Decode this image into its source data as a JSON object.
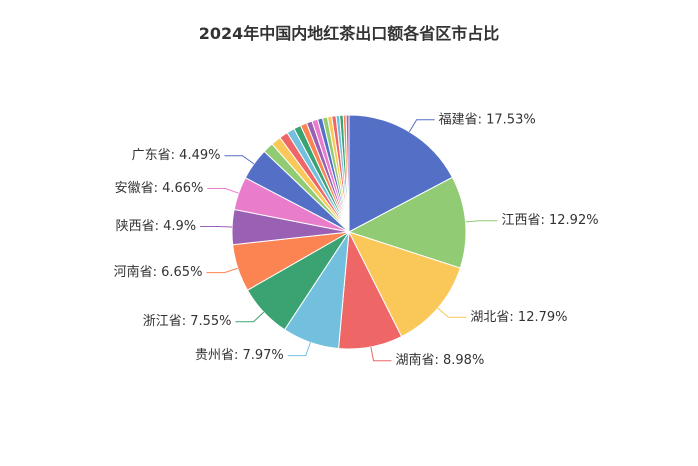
{
  "chart_data": {
    "type": "pie",
    "title": "2024年中国内地红茶出口额各省区市占比",
    "slices": [
      {
        "name": "福建省",
        "value": 17.53,
        "label": "福建省: 17.53%",
        "color": "#5470c6"
      },
      {
        "name": "江西省",
        "value": 12.92,
        "label": "江西省: 12.92%",
        "color": "#91cc75"
      },
      {
        "name": "湖北省",
        "value": 12.79,
        "label": "湖北省: 12.79%",
        "color": "#fac858"
      },
      {
        "name": "湖南省",
        "value": 8.98,
        "label": "湖南省: 8.98%",
        "color": "#ee6666"
      },
      {
        "name": "贵州省",
        "value": 7.97,
        "label": "贵州省: 7.97%",
        "color": "#73c0de"
      },
      {
        "name": "浙江省",
        "value": 7.55,
        "label": "浙江省: 7.55%",
        "color": "#3ba272"
      },
      {
        "name": "河南省",
        "value": 6.65,
        "label": "河南省: 6.65%",
        "color": "#fc8452"
      },
      {
        "name": "陕西省",
        "value": 4.9,
        "label": "陕西省: 4.9%",
        "color": "#9a60b4"
      },
      {
        "name": "安徽省",
        "value": 4.66,
        "label": "安徽省: 4.66%",
        "color": "#ea7ccc"
      },
      {
        "name": "广东省",
        "value": 4.49,
        "label": "广东省: 4.49%",
        "color": "#5470c6"
      },
      {
        "name": "",
        "value": 1.5,
        "label": "",
        "color": "#91cc75"
      },
      {
        "name": "",
        "value": 1.4,
        "label": "",
        "color": "#fac858"
      },
      {
        "name": "",
        "value": 1.2,
        "label": "",
        "color": "#ee6666"
      },
      {
        "name": "",
        "value": 1.1,
        "label": "",
        "color": "#73c0de"
      },
      {
        "name": "",
        "value": 1.0,
        "label": "",
        "color": "#3ba272"
      },
      {
        "name": "",
        "value": 0.9,
        "label": "",
        "color": "#fc8452"
      },
      {
        "name": "",
        "value": 0.8,
        "label": "",
        "color": "#9a60b4"
      },
      {
        "name": "",
        "value": 0.8,
        "label": "",
        "color": "#ea7ccc"
      },
      {
        "name": "",
        "value": 0.7,
        "label": "",
        "color": "#5470c6"
      },
      {
        "name": "",
        "value": 0.7,
        "label": "",
        "color": "#91cc75"
      },
      {
        "name": "",
        "value": 0.6,
        "label": "",
        "color": "#fac858"
      },
      {
        "name": "",
        "value": 0.6,
        "label": "",
        "color": "#ee6666"
      },
      {
        "name": "",
        "value": 0.5,
        "label": "",
        "color": "#73c0de"
      },
      {
        "name": "",
        "value": 0.5,
        "label": "",
        "color": "#3ba272"
      },
      {
        "name": "",
        "value": 0.4,
        "label": "",
        "color": "#fc8452"
      },
      {
        "name": "",
        "value": 0.4,
        "label": "",
        "color": "#9a60b4"
      }
    ]
  }
}
